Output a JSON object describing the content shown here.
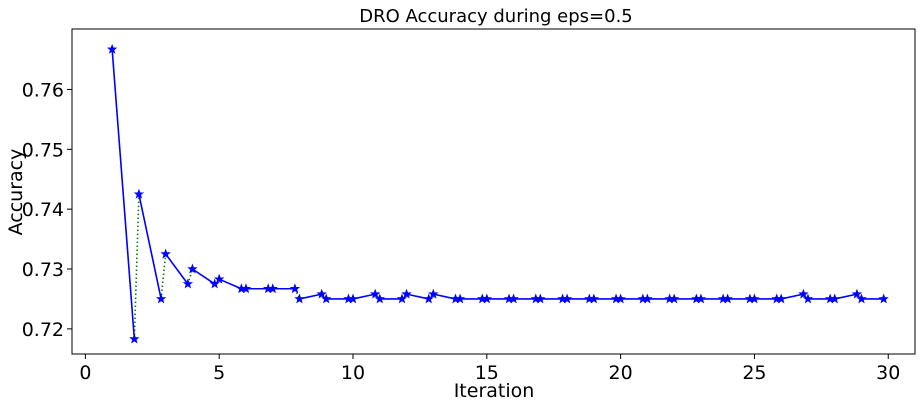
{
  "chart_data": {
    "type": "line",
    "title": "DRO Accuracy during eps=0.5",
    "xlabel": "Iteration",
    "ylabel": "Accuracy",
    "xlim": [
      -0.5,
      31.0
    ],
    "ylim": [
      0.7158,
      0.7701
    ],
    "xticks": [
      0,
      5,
      10,
      15,
      20,
      25,
      30
    ],
    "yticks": [
      0.72,
      0.73,
      0.74,
      0.75,
      0.76
    ],
    "ytick_labels": [
      "0.72",
      "0.73",
      "0.74",
      "0.75",
      "0.76"
    ],
    "grid": false,
    "legend": "none",
    "series": [
      {
        "style": "solid",
        "color": "#0000ff",
        "marker": "star",
        "segments": [
          [
            [
              1.0,
              0.7667
            ],
            [
              1.83,
              0.7183
            ]
          ],
          [
            [
              2.0,
              0.7425
            ],
            [
              2.83,
              0.725
            ]
          ],
          [
            [
              3.0,
              0.7325
            ],
            [
              3.83,
              0.7275
            ]
          ],
          [
            [
              4.0,
              0.73
            ],
            [
              4.83,
              0.7275
            ]
          ],
          [
            [
              5.0,
              0.7283
            ],
            [
              5.83,
              0.7267
            ]
          ],
          [
            [
              6.0,
              0.7267
            ],
            [
              6.83,
              0.7267
            ]
          ],
          [
            [
              7.0,
              0.7267
            ],
            [
              7.83,
              0.7267
            ]
          ],
          [
            [
              8.0,
              0.725
            ],
            [
              8.83,
              0.7258
            ]
          ],
          [
            [
              9.0,
              0.725
            ],
            [
              9.83,
              0.725
            ]
          ],
          [
            [
              10.0,
              0.725
            ],
            [
              10.83,
              0.7258
            ]
          ],
          [
            [
              11.0,
              0.725
            ],
            [
              11.83,
              0.725
            ]
          ],
          [
            [
              12.0,
              0.7258
            ],
            [
              12.83,
              0.725
            ]
          ],
          [
            [
              13.0,
              0.7258
            ],
            [
              13.83,
              0.725
            ]
          ],
          [
            [
              14.0,
              0.725
            ],
            [
              14.83,
              0.725
            ]
          ],
          [
            [
              15.0,
              0.725
            ],
            [
              15.83,
              0.725
            ]
          ],
          [
            [
              16.0,
              0.725
            ],
            [
              16.83,
              0.725
            ]
          ],
          [
            [
              17.0,
              0.725
            ],
            [
              17.83,
              0.725
            ]
          ],
          [
            [
              18.0,
              0.725
            ],
            [
              18.83,
              0.725
            ]
          ],
          [
            [
              19.0,
              0.725
            ],
            [
              19.83,
              0.725
            ]
          ],
          [
            [
              20.0,
              0.725
            ],
            [
              20.83,
              0.725
            ]
          ],
          [
            [
              21.0,
              0.725
            ],
            [
              21.83,
              0.725
            ]
          ],
          [
            [
              22.0,
              0.725
            ],
            [
              22.83,
              0.725
            ]
          ],
          [
            [
              23.0,
              0.725
            ],
            [
              23.83,
              0.725
            ]
          ],
          [
            [
              24.0,
              0.725
            ],
            [
              24.83,
              0.725
            ]
          ],
          [
            [
              25.0,
              0.725
            ],
            [
              25.83,
              0.725
            ]
          ],
          [
            [
              26.0,
              0.725
            ],
            [
              26.83,
              0.7258
            ]
          ],
          [
            [
              27.0,
              0.725
            ],
            [
              27.83,
              0.725
            ]
          ],
          [
            [
              28.0,
              0.725
            ],
            [
              28.83,
              0.7258
            ]
          ],
          [
            [
              29.0,
              0.725
            ],
            [
              29.83,
              0.725
            ]
          ]
        ]
      },
      {
        "style": "dotted",
        "color": "#008000",
        "marker": "none",
        "segments": [
          [
            [
              1.83,
              0.7183
            ],
            [
              2.0,
              0.7425
            ]
          ],
          [
            [
              2.83,
              0.725
            ],
            [
              3.0,
              0.7325
            ]
          ],
          [
            [
              3.83,
              0.7275
            ],
            [
              4.0,
              0.73
            ]
          ],
          [
            [
              4.83,
              0.7275
            ],
            [
              5.0,
              0.7283
            ]
          ],
          [
            [
              5.83,
              0.7267
            ],
            [
              6.0,
              0.7267
            ]
          ],
          [
            [
              6.83,
              0.7267
            ],
            [
              7.0,
              0.7267
            ]
          ],
          [
            [
              7.83,
              0.7267
            ],
            [
              8.0,
              0.725
            ]
          ],
          [
            [
              8.83,
              0.7258
            ],
            [
              9.0,
              0.725
            ]
          ],
          [
            [
              9.83,
              0.725
            ],
            [
              10.0,
              0.725
            ]
          ],
          [
            [
              10.83,
              0.7258
            ],
            [
              11.0,
              0.725
            ]
          ],
          [
            [
              11.83,
              0.725
            ],
            [
              12.0,
              0.7258
            ]
          ],
          [
            [
              12.83,
              0.725
            ],
            [
              13.0,
              0.7258
            ]
          ],
          [
            [
              13.83,
              0.725
            ],
            [
              14.0,
              0.725
            ]
          ],
          [
            [
              14.83,
              0.725
            ],
            [
              15.0,
              0.725
            ]
          ],
          [
            [
              15.83,
              0.725
            ],
            [
              16.0,
              0.725
            ]
          ],
          [
            [
              16.83,
              0.725
            ],
            [
              17.0,
              0.725
            ]
          ],
          [
            [
              17.83,
              0.725
            ],
            [
              18.0,
              0.725
            ]
          ],
          [
            [
              18.83,
              0.725
            ],
            [
              19.0,
              0.725
            ]
          ],
          [
            [
              19.83,
              0.725
            ],
            [
              20.0,
              0.725
            ]
          ],
          [
            [
              20.83,
              0.725
            ],
            [
              21.0,
              0.725
            ]
          ],
          [
            [
              21.83,
              0.725
            ],
            [
              22.0,
              0.725
            ]
          ],
          [
            [
              22.83,
              0.725
            ],
            [
              23.0,
              0.725
            ]
          ],
          [
            [
              23.83,
              0.725
            ],
            [
              24.0,
              0.725
            ]
          ],
          [
            [
              24.83,
              0.725
            ],
            [
              25.0,
              0.725
            ]
          ],
          [
            [
              25.83,
              0.725
            ],
            [
              26.0,
              0.725
            ]
          ],
          [
            [
              26.83,
              0.7258
            ],
            [
              27.0,
              0.725
            ]
          ],
          [
            [
              27.83,
              0.725
            ],
            [
              28.0,
              0.725
            ]
          ],
          [
            [
              28.83,
              0.7258
            ],
            [
              29.0,
              0.725
            ]
          ]
        ]
      }
    ]
  }
}
